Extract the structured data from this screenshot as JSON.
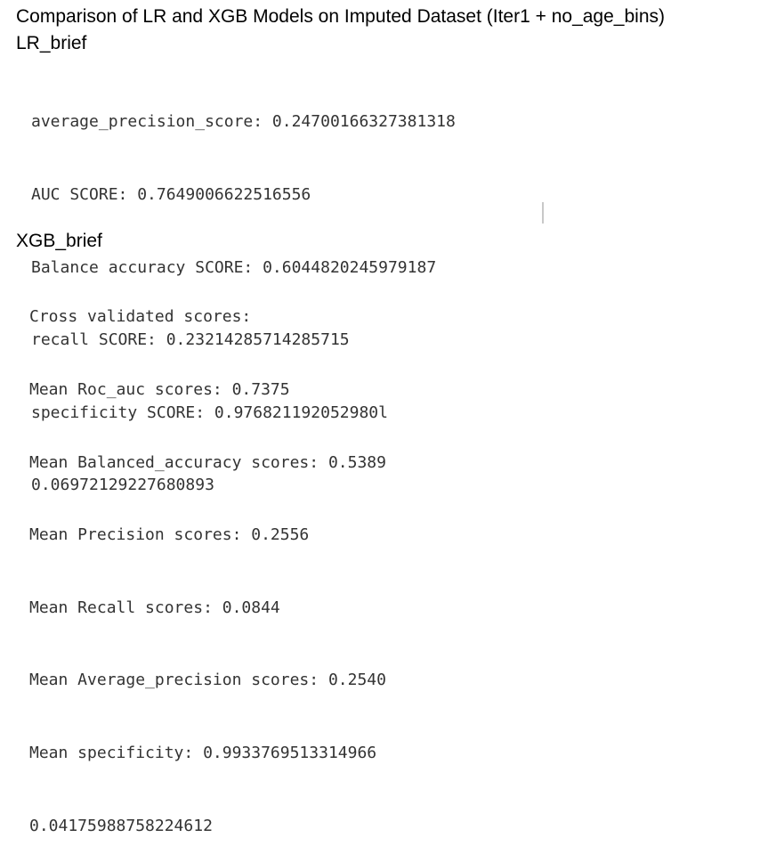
{
  "title": "Comparison of LR and XGB Models on Imputed Dataset (Iter1 + no_age_bins)",
  "lr_section": {
    "label": "LR_brief",
    "lines": [
      "average_precision_score: 0.24700166327381318",
      "AUC SCORE: 0.7649006622516556",
      "Balance accuracy SCORE: 0.6044820245979187",
      "recall SCORE: 0.23214285714285715",
      "specificity SCORE: 0.976821192052980l",
      "0.06972129227680893"
    ]
  },
  "xgb_section": {
    "label": "XGB_brief",
    "lines": [
      "Cross validated scores:",
      "Mean Roc_auc scores: 0.7375",
      "Mean Balanced_accuracy scores: 0.5389",
      "Mean Precision scores: 0.2556",
      "Mean Recall scores: 0.0844",
      "Mean Average_precision scores: 0.2540",
      "Mean specificity: 0.9933769513314966",
      "0.04175988758224612"
    ]
  }
}
